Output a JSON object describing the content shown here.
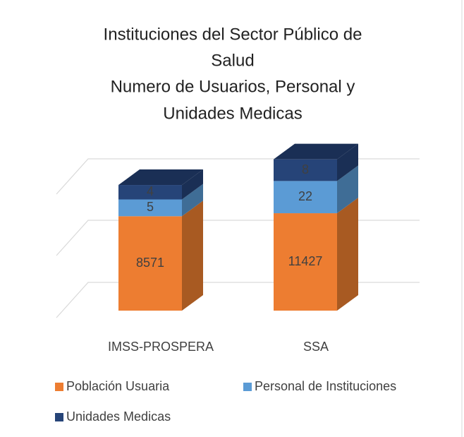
{
  "chart_data": {
    "type": "bar3d_stacked",
    "title": [
      "Instituciones del Sector Público de",
      "Salud",
      "Numero de Usuarios, Personal y",
      "Unidades Medicas"
    ],
    "categories": [
      "IMSS-PROSPERA",
      "SSA"
    ],
    "log_scale": true,
    "series": [
      {
        "name": "Población Usuaria",
        "color": "#ed7d31",
        "side": "#a85a22",
        "values": [
          8571,
          11427
        ]
      },
      {
        "name": "Personal de Instituciones",
        "color": "#5b9bd5",
        "side": "#3f6d96",
        "values": [
          5,
          22
        ]
      },
      {
        "name": "Unidades Medicas",
        "color": "#264478",
        "side": "#1a2f55",
        "values": [
          4,
          8
        ]
      }
    ]
  }
}
